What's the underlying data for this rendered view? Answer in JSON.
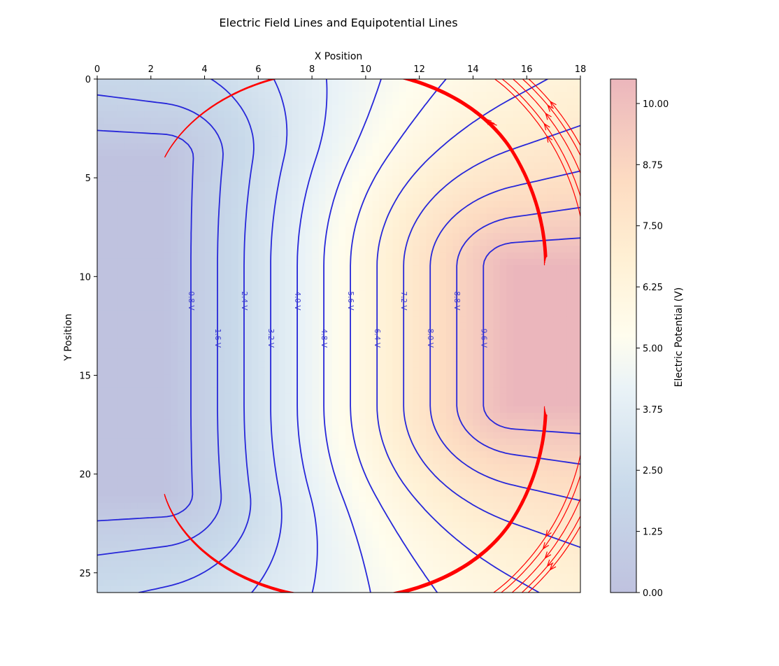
{
  "chart_data": {
    "type": "contour",
    "title": "Electric Field Lines and Equipotential Lines",
    "xlabel": "X Position",
    "ylabel": "Y Position",
    "xlim": [
      0,
      18
    ],
    "ylim": [
      26,
      0
    ],
    "xticks": [
      "0",
      "2",
      "4",
      "6",
      "8",
      "10",
      "12",
      "14",
      "16",
      "18"
    ],
    "yticks": [
      "0",
      "5",
      "10",
      "15",
      "20",
      "25"
    ],
    "colorbar": {
      "label": "Electric Potential (V)",
      "range": [
        0,
        10.5
      ],
      "ticks": [
        "0.00",
        "1.25",
        "2.50",
        "3.75",
        "5.00",
        "6.25",
        "7.50",
        "8.75",
        "10.00"
      ]
    },
    "low_electrode": {
      "x": [
        0,
        2.5
      ],
      "y": [
        4,
        21
      ],
      "potential": 0
    },
    "high_electrode": {
      "x": [
        15.5,
        18
      ],
      "y": [
        9.5,
        16.5
      ],
      "potential": 10.5
    },
    "equipotential_labels": [
      "0.8 V",
      "1.6 V",
      "2.4 V",
      "3.2 V",
      "4.0 V",
      "4.8 V",
      "5.6 V",
      "6.4 V",
      "7.2 V",
      "8.0 V",
      "8.8 V",
      "9.6 V"
    ],
    "equipotential_levels": [
      0.8,
      1.6,
      2.4,
      3.2,
      4.0,
      4.8,
      5.6,
      6.4,
      7.2,
      8.0,
      8.8,
      9.6
    ],
    "colors": {
      "field_lines": "#ff0000",
      "equipotential_lines": "#2727d9",
      "label_color": "#3a3ad0",
      "colormap": [
        "#3b4cc0",
        "#c7e0ee",
        "#fffbe8",
        "#fcd9a8",
        "#d4414e"
      ]
    }
  }
}
